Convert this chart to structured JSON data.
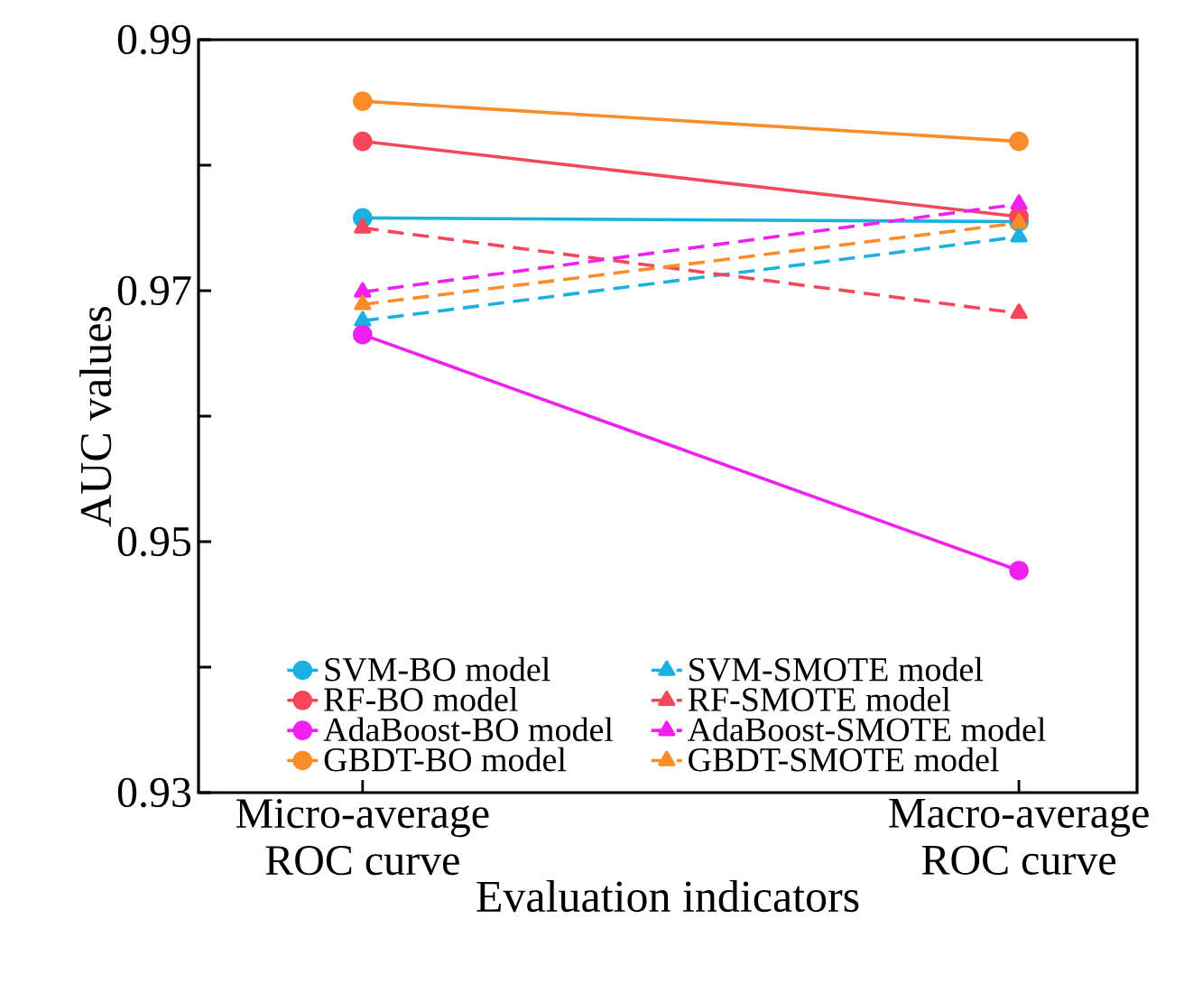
{
  "chart_data": {
    "type": "line",
    "xlabel": "Evaluation indicators",
    "ylabel": "AUC values",
    "categories": [
      "Micro-average ROC curve",
      "Macro-average ROC curve"
    ],
    "ylim": [
      0.93,
      0.99
    ],
    "yticks": [
      0.93,
      {
        "value": 0.94,
        "label": null
      },
      0.95,
      {
        "value": 0.96,
        "label": null
      },
      0.97,
      {
        "value": 0.98,
        "label": null
      },
      0.99
    ],
    "legend": "bottom",
    "grid": false,
    "series": [
      {
        "name": "SVM-BO model",
        "color": "#1cb0e0",
        "marker": "circle",
        "line_style": "solid",
        "values": [
          0.9758,
          0.9755
        ]
      },
      {
        "name": "SVM-SMOTE model",
        "color": "#1cb0e0",
        "marker": "triangle",
        "line_style": "dashed",
        "values": [
          0.9676,
          0.9743
        ]
      },
      {
        "name": "RF-BO model",
        "color": "#f4485a",
        "marker": "circle",
        "line_style": "solid",
        "values": [
          0.9819,
          0.9759
        ]
      },
      {
        "name": "RF-SMOTE model",
        "color": "#f4485a",
        "marker": "triangle",
        "line_style": "dashed",
        "values": [
          0.975,
          0.9682
        ]
      },
      {
        "name": "AdaBoost-BO model",
        "color": "#f020f0",
        "marker": "circle",
        "line_style": "solid",
        "values": [
          0.9665,
          0.9477
        ]
      },
      {
        "name": "AdaBoost-SMOTE model",
        "color": "#f020f0",
        "marker": "triangle",
        "line_style": "dashed",
        "values": [
          0.9699,
          0.9769
        ]
      },
      {
        "name": "GBDT-BO model",
        "color": "#fb8c2a",
        "marker": "circle",
        "line_style": "solid",
        "values": [
          0.9851,
          0.9819
        ]
      },
      {
        "name": "GBDT-SMOTE model",
        "color": "#fb8c2a",
        "marker": "triangle",
        "line_style": "dashed",
        "values": [
          0.9689,
          0.9754
        ]
      }
    ]
  }
}
